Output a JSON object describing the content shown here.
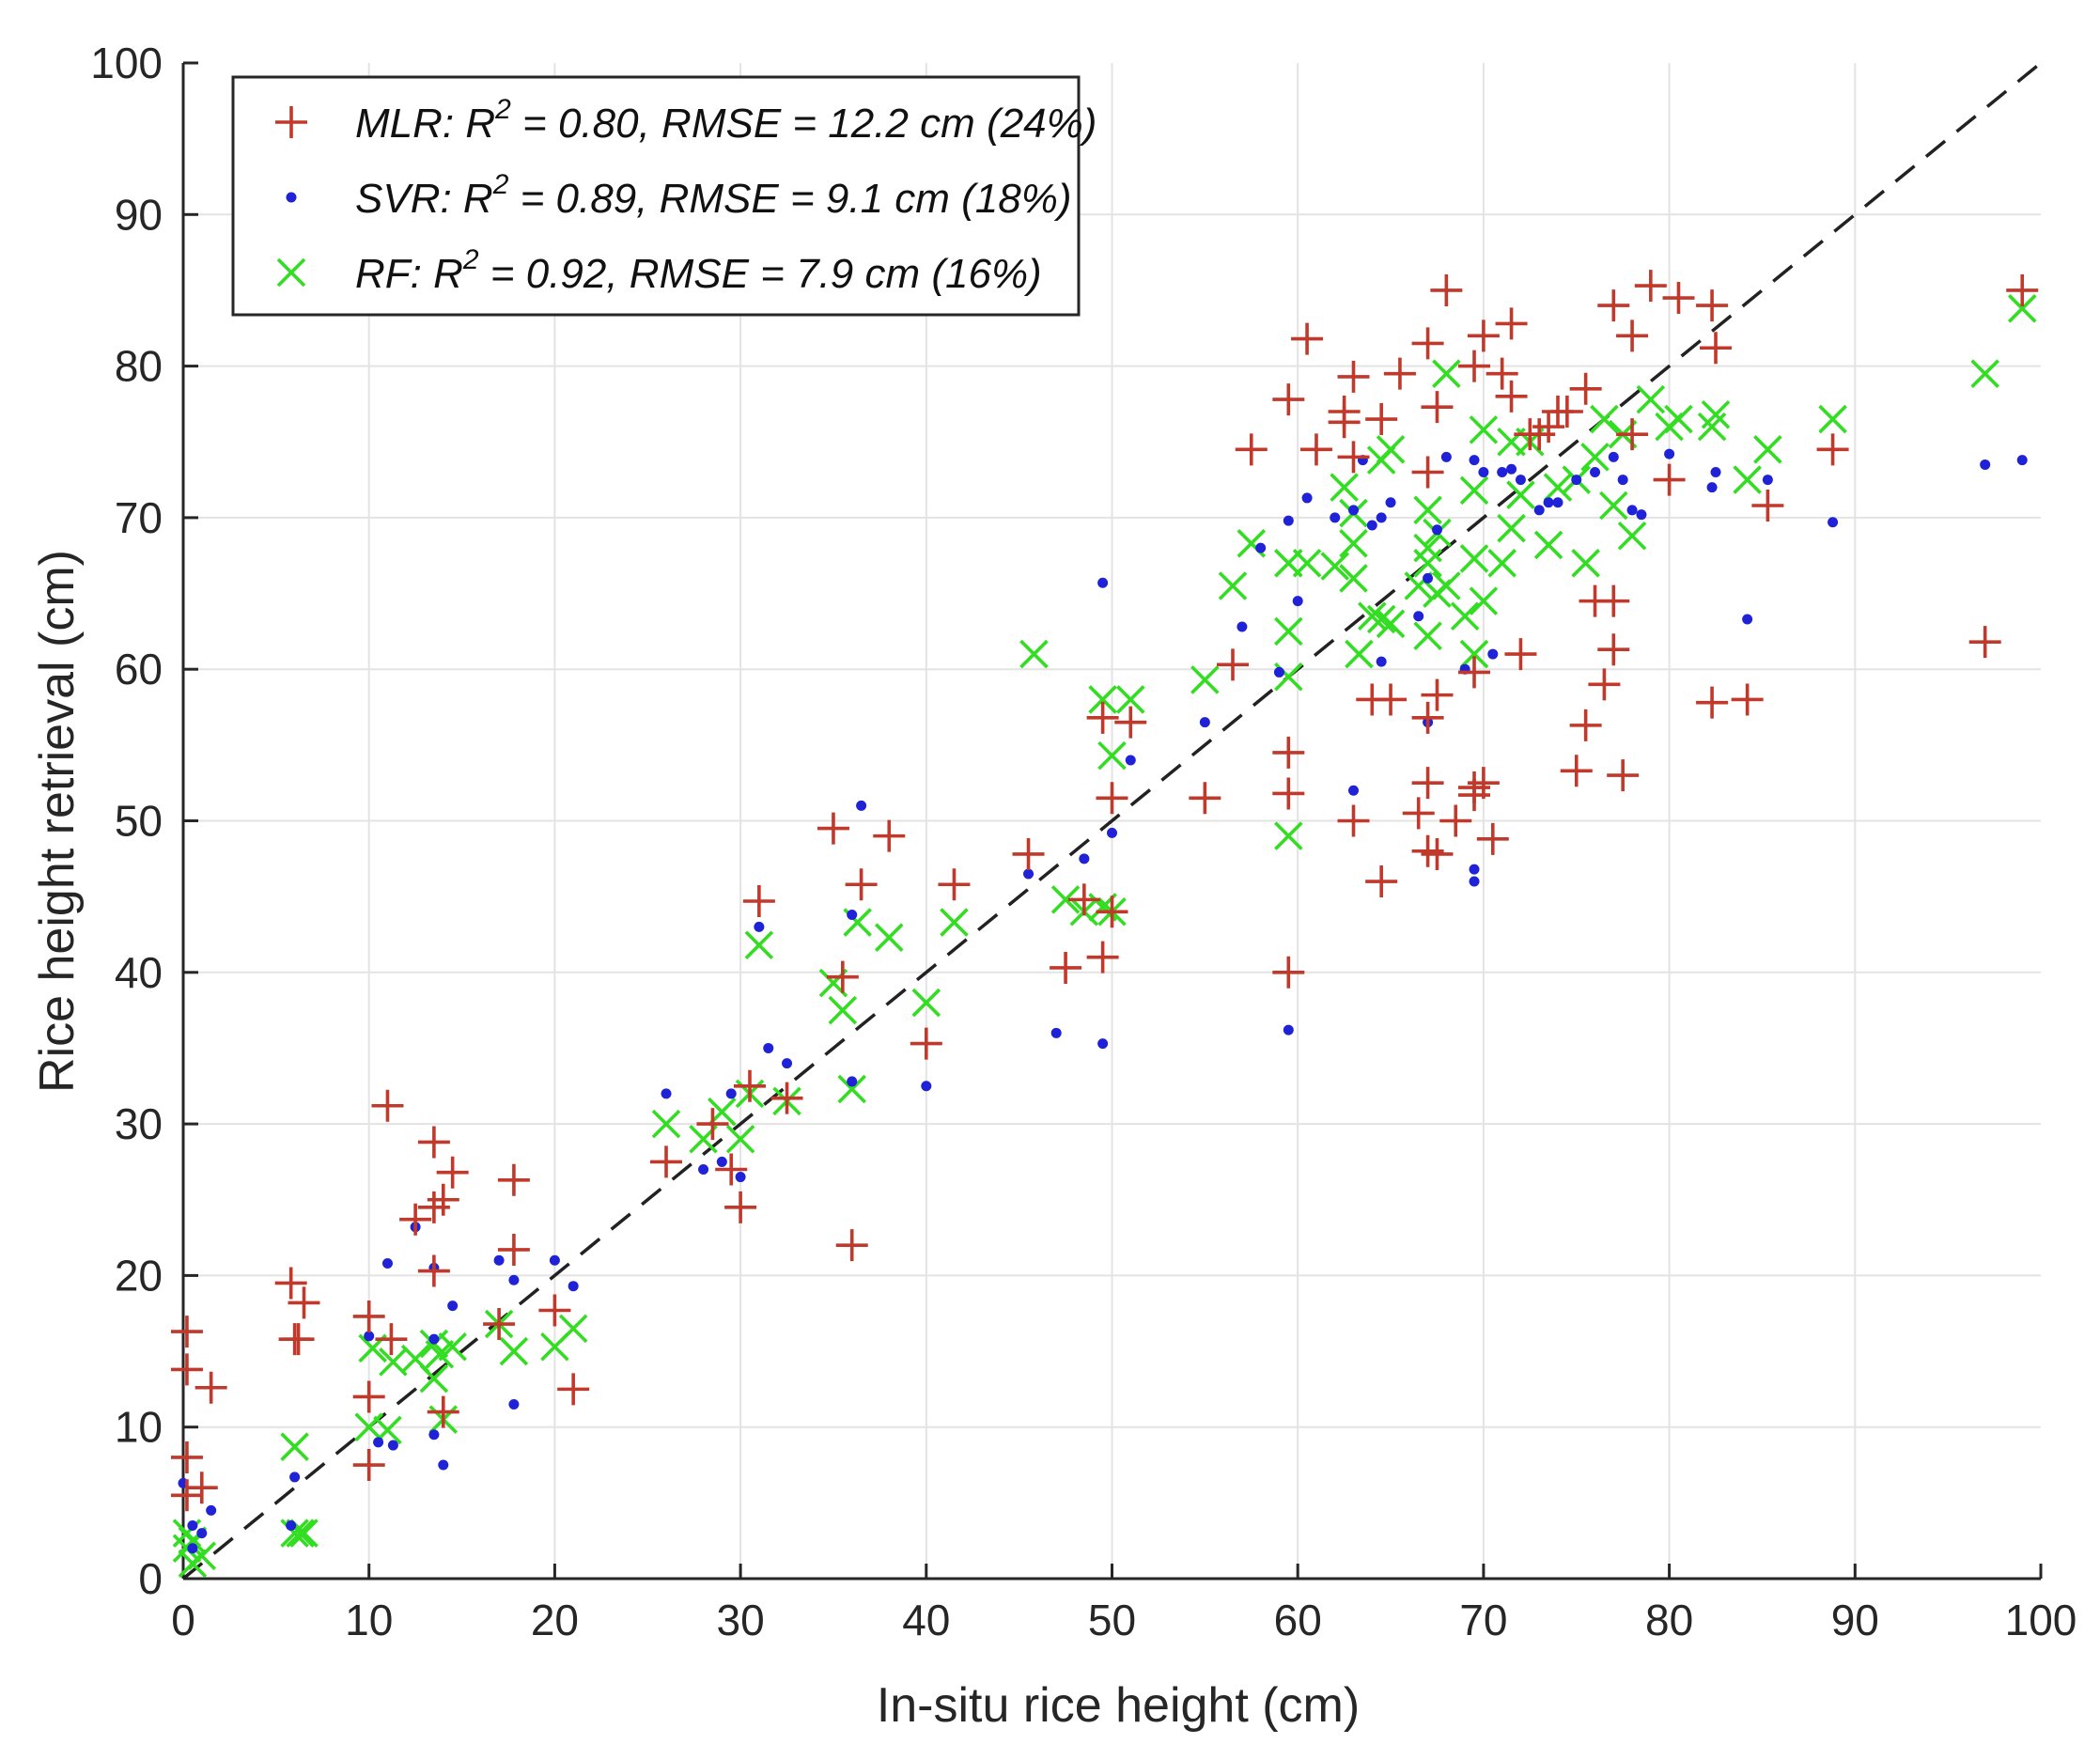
{
  "chart_data": {
    "type": "scatter",
    "title": "",
    "xlabel": "In-situ rice height (cm)",
    "ylabel": "Rice height retrieval (cm)",
    "xlim": [
      0,
      100
    ],
    "ylim": [
      0,
      100
    ],
    "xticks": [
      0,
      10,
      20,
      30,
      40,
      50,
      60,
      70,
      80,
      90,
      100
    ],
    "yticks": [
      0,
      10,
      20,
      30,
      40,
      50,
      60,
      70,
      80,
      90,
      100
    ],
    "grid": true,
    "legend_position": "top-left",
    "reference_line": {
      "label": "1:1 line",
      "style": "dashed",
      "color": "#222222",
      "points": [
        [
          0,
          0
        ],
        [
          100,
          100
        ]
      ]
    },
    "series": [
      {
        "name": "MLR",
        "marker": "plus",
        "color": "#c0392b",
        "legend": {
          "model": "MLR:",
          "r2_label": "R",
          "r2_sup": "2",
          "stats": " = 0.80, RMSE = 12.2  cm (24%)"
        },
        "points": [
          [
            0.2,
            16.3
          ],
          [
            0.2,
            13.8
          ],
          [
            0.2,
            8
          ],
          [
            0.2,
            5.5
          ],
          [
            1,
            6
          ],
          [
            1.5,
            12.6
          ],
          [
            5.8,
            19.5
          ],
          [
            6,
            15.8
          ],
          [
            6.2,
            15.8
          ],
          [
            6.5,
            18.2
          ],
          [
            10,
            17.3
          ],
          [
            10,
            12
          ],
          [
            10,
            7.5
          ],
          [
            11,
            31.2
          ],
          [
            11.2,
            15.8
          ],
          [
            12.5,
            23.7
          ],
          [
            13.5,
            28.8
          ],
          [
            13.5,
            24.5
          ],
          [
            13.5,
            20.3
          ],
          [
            14,
            25
          ],
          [
            14.5,
            26.8
          ],
          [
            14,
            11
          ],
          [
            17,
            16.8
          ],
          [
            17.8,
            26.3
          ],
          [
            17.8,
            21.7
          ],
          [
            20,
            17.7
          ],
          [
            21,
            12.5
          ],
          [
            26,
            27.5
          ],
          [
            28.5,
            30
          ],
          [
            29.5,
            27
          ],
          [
            30,
            24.5
          ],
          [
            30.5,
            32.5
          ],
          [
            31,
            44.7
          ],
          [
            32.5,
            31.7
          ],
          [
            35,
            49.5
          ],
          [
            35.5,
            39.7
          ],
          [
            36,
            22
          ],
          [
            36.5,
            45.8
          ],
          [
            38,
            49
          ],
          [
            40,
            35.3
          ],
          [
            41.5,
            45.8
          ],
          [
            45.5,
            47.8
          ],
          [
            47.5,
            40.3
          ],
          [
            48.5,
            44.8
          ],
          [
            49.5,
            56.8
          ],
          [
            49.5,
            41
          ],
          [
            50,
            51.5
          ],
          [
            50,
            44
          ],
          [
            51,
            56.5
          ],
          [
            55,
            51.5
          ],
          [
            56.5,
            60.3
          ],
          [
            57.5,
            74.5
          ],
          [
            59.5,
            77.8
          ],
          [
            59.5,
            54.5
          ],
          [
            59.5,
            51.8
          ],
          [
            59.5,
            40
          ],
          [
            60.5,
            81.8
          ],
          [
            61,
            74.5
          ],
          [
            62.5,
            77
          ],
          [
            62.5,
            76.3
          ],
          [
            63,
            79.3
          ],
          [
            63,
            74
          ],
          [
            63,
            50
          ],
          [
            64,
            58
          ],
          [
            64.5,
            76.5
          ],
          [
            64.5,
            46
          ],
          [
            65,
            58
          ],
          [
            65.5,
            79.5
          ],
          [
            66.5,
            50.5
          ],
          [
            67,
            81.5
          ],
          [
            67,
            73
          ],
          [
            67,
            56.8
          ],
          [
            67,
            52.5
          ],
          [
            67,
            48
          ],
          [
            67.5,
            77.3
          ],
          [
            67.5,
            47.8
          ],
          [
            67.5,
            58.3
          ],
          [
            68,
            85
          ],
          [
            68.5,
            50
          ],
          [
            69.5,
            80
          ],
          [
            69.5,
            52.2
          ],
          [
            69.5,
            51.7
          ],
          [
            69.5,
            59.8
          ],
          [
            70,
            82
          ],
          [
            70,
            52.5
          ],
          [
            70.5,
            48.8
          ],
          [
            71,
            79.5
          ],
          [
            71.5,
            78
          ],
          [
            71.5,
            82.8
          ],
          [
            72,
            61
          ],
          [
            72.5,
            75.5
          ],
          [
            73,
            75.5
          ],
          [
            73.5,
            76
          ],
          [
            74,
            77
          ],
          [
            74.5,
            77
          ],
          [
            75,
            53.3
          ],
          [
            75.5,
            78.5
          ],
          [
            75.5,
            56.3
          ],
          [
            76,
            64.5
          ],
          [
            76.5,
            59
          ],
          [
            77,
            84
          ],
          [
            77,
            61.3
          ],
          [
            77,
            64.5
          ],
          [
            77.5,
            53
          ],
          [
            78,
            82
          ],
          [
            78,
            75.5
          ],
          [
            79,
            85.3
          ],
          [
            80,
            72.5
          ],
          [
            80.5,
            84.5
          ],
          [
            82.3,
            84
          ],
          [
            82.3,
            57.8
          ],
          [
            82.5,
            81.2
          ],
          [
            84.2,
            58
          ],
          [
            85.3,
            70.8
          ],
          [
            88.8,
            74.5
          ],
          [
            97,
            61.8
          ],
          [
            99,
            85
          ]
        ]
      },
      {
        "name": "SVR",
        "marker": "dot",
        "color": "#1f22d6",
        "legend": {
          "model": "SVR:",
          "r2_label": "R",
          "r2_sup": "2",
          "stats": " = 0.89, RMSE = 9.1  cm (18%)"
        },
        "points": [
          [
            0,
            6.3
          ],
          [
            0.5,
            3.5
          ],
          [
            0.5,
            2
          ],
          [
            1,
            3
          ],
          [
            1.5,
            4.5
          ],
          [
            5.8,
            3.5
          ],
          [
            6,
            6.7
          ],
          [
            10,
            16
          ],
          [
            10.5,
            9
          ],
          [
            11,
            20.8
          ],
          [
            11.3,
            8.8
          ],
          [
            12.5,
            23.2
          ],
          [
            13.5,
            20.5
          ],
          [
            13.5,
            15.8
          ],
          [
            13.5,
            9.5
          ],
          [
            14,
            7.5
          ],
          [
            14.5,
            18
          ],
          [
            17,
            21
          ],
          [
            17.8,
            19.7
          ],
          [
            17.8,
            11.5
          ],
          [
            20,
            21
          ],
          [
            21,
            19.3
          ],
          [
            26,
            32
          ],
          [
            28,
            27
          ],
          [
            29,
            27.5
          ],
          [
            29.5,
            32
          ],
          [
            30,
            26.5
          ],
          [
            31,
            43
          ],
          [
            31.5,
            35
          ],
          [
            32.5,
            34
          ],
          [
            36,
            43.8
          ],
          [
            36,
            32.8
          ],
          [
            36.5,
            51
          ],
          [
            40,
            32.5
          ],
          [
            45.5,
            46.5
          ],
          [
            47,
            36
          ],
          [
            48.5,
            47.5
          ],
          [
            49.5,
            65.7
          ],
          [
            49.5,
            35.3
          ],
          [
            50,
            49.2
          ],
          [
            51,
            54
          ],
          [
            55,
            56.5
          ],
          [
            57,
            62.8
          ],
          [
            58,
            68
          ],
          [
            59,
            59.8
          ],
          [
            59.5,
            36.2
          ],
          [
            59.5,
            69.8
          ],
          [
            60,
            64.5
          ],
          [
            60.5,
            71.3
          ],
          [
            62,
            70
          ],
          [
            63,
            70.5
          ],
          [
            63,
            52
          ],
          [
            63.5,
            73.8
          ],
          [
            64,
            69.5
          ],
          [
            64.5,
            70
          ],
          [
            64.5,
            60.5
          ],
          [
            65,
            71
          ],
          [
            66.5,
            63.5
          ],
          [
            67,
            66
          ],
          [
            67,
            56.5
          ],
          [
            67.5,
            69.2
          ],
          [
            68,
            74
          ],
          [
            69,
            60
          ],
          [
            69.5,
            73.8
          ],
          [
            69.5,
            46
          ],
          [
            69.5,
            46.8
          ],
          [
            70,
            73
          ],
          [
            70.5,
            61
          ],
          [
            71,
            73
          ],
          [
            71.5,
            73.2
          ],
          [
            72,
            72.5
          ],
          [
            73,
            70.5
          ],
          [
            73.5,
            71
          ],
          [
            74,
            71
          ],
          [
            75,
            72.5
          ],
          [
            76,
            73
          ],
          [
            77,
            74
          ],
          [
            77.5,
            72.5
          ],
          [
            78,
            70.5
          ],
          [
            78.5,
            70.2
          ],
          [
            80,
            74.2
          ],
          [
            82.3,
            72
          ],
          [
            82.5,
            73
          ],
          [
            84.2,
            63.3
          ],
          [
            85.3,
            72.5
          ],
          [
            88.8,
            69.7
          ],
          [
            97,
            73.5
          ],
          [
            99,
            73.8
          ]
        ]
      },
      {
        "name": "RF",
        "marker": "cross",
        "color": "#33dd22",
        "legend": {
          "model": "RF:",
          "r2_label": "R",
          "r2_sup": "2",
          "stats": " = 0.92,  RMSE = 7.9  cm (16%)"
        },
        "points": [
          [
            0.2,
            3
          ],
          [
            0.2,
            2
          ],
          [
            0.5,
            2.5
          ],
          [
            0.5,
            1
          ],
          [
            1,
            1.5
          ],
          [
            6,
            8.7
          ],
          [
            6,
            3
          ],
          [
            6.3,
            3
          ],
          [
            6.5,
            3
          ],
          [
            10,
            10
          ],
          [
            10.2,
            15.2
          ],
          [
            11,
            9.8
          ],
          [
            11.3,
            14.3
          ],
          [
            12.5,
            14.5
          ],
          [
            13.5,
            15.5
          ],
          [
            13.5,
            13.2
          ],
          [
            13.8,
            14.8
          ],
          [
            14,
            10.5
          ],
          [
            14.5,
            15.3
          ],
          [
            17,
            16.8
          ],
          [
            17.8,
            15
          ],
          [
            20,
            15.3
          ],
          [
            21,
            16.5
          ],
          [
            26,
            30
          ],
          [
            28,
            29
          ],
          [
            29,
            30.8
          ],
          [
            30,
            29
          ],
          [
            30.5,
            32
          ],
          [
            31,
            41.8
          ],
          [
            32.5,
            31.5
          ],
          [
            35,
            39.3
          ],
          [
            35.5,
            37.5
          ],
          [
            36,
            32.3
          ],
          [
            36.3,
            43.3
          ],
          [
            38,
            42.3
          ],
          [
            40,
            38
          ],
          [
            41.5,
            43.3
          ],
          [
            45.8,
            61
          ],
          [
            47.5,
            44.8
          ],
          [
            48.5,
            44
          ],
          [
            49.5,
            44.3
          ],
          [
            49.5,
            58
          ],
          [
            50,
            54.3
          ],
          [
            50,
            44
          ],
          [
            51,
            58
          ],
          [
            55,
            59.3
          ],
          [
            56.5,
            65.5
          ],
          [
            57.5,
            68.3
          ],
          [
            59.5,
            49
          ],
          [
            59.5,
            59.5
          ],
          [
            59.5,
            62.5
          ],
          [
            59.5,
            67
          ],
          [
            60.5,
            67
          ],
          [
            62,
            66.8
          ],
          [
            62.5,
            72
          ],
          [
            63,
            70.3
          ],
          [
            63,
            68.3
          ],
          [
            63,
            66
          ],
          [
            63.3,
            61
          ],
          [
            64,
            63.5
          ],
          [
            64.5,
            73.8
          ],
          [
            64.5,
            63.3
          ],
          [
            65,
            74.5
          ],
          [
            65,
            63
          ],
          [
            66.5,
            65.5
          ],
          [
            67,
            70.5
          ],
          [
            67,
            68
          ],
          [
            67,
            67
          ],
          [
            67,
            62.2
          ],
          [
            67.5,
            69
          ],
          [
            67.5,
            65
          ],
          [
            68,
            79.5
          ],
          [
            68,
            65.5
          ],
          [
            69,
            63.5
          ],
          [
            69.5,
            71.8
          ],
          [
            69.5,
            67.3
          ],
          [
            69.5,
            61
          ],
          [
            70,
            75.8
          ],
          [
            70,
            64.5
          ],
          [
            71,
            67
          ],
          [
            71.5,
            75
          ],
          [
            71.5,
            69.3
          ],
          [
            72,
            71.5
          ],
          [
            72.5,
            75
          ],
          [
            73.5,
            68.2
          ],
          [
            74,
            72
          ],
          [
            75,
            72.5
          ],
          [
            75.5,
            67
          ],
          [
            76,
            74
          ],
          [
            76.5,
            76.5
          ],
          [
            77,
            70.8
          ],
          [
            77.5,
            75.5
          ],
          [
            78,
            68.8
          ],
          [
            79,
            77.8
          ],
          [
            80,
            76
          ],
          [
            80.5,
            76.5
          ],
          [
            82.3,
            76
          ],
          [
            82.5,
            76.8
          ],
          [
            84.2,
            72.5
          ],
          [
            85.3,
            74.5
          ],
          [
            88.8,
            76.5
          ],
          [
            97,
            79.5
          ],
          [
            99,
            83.8
          ]
        ]
      }
    ]
  }
}
